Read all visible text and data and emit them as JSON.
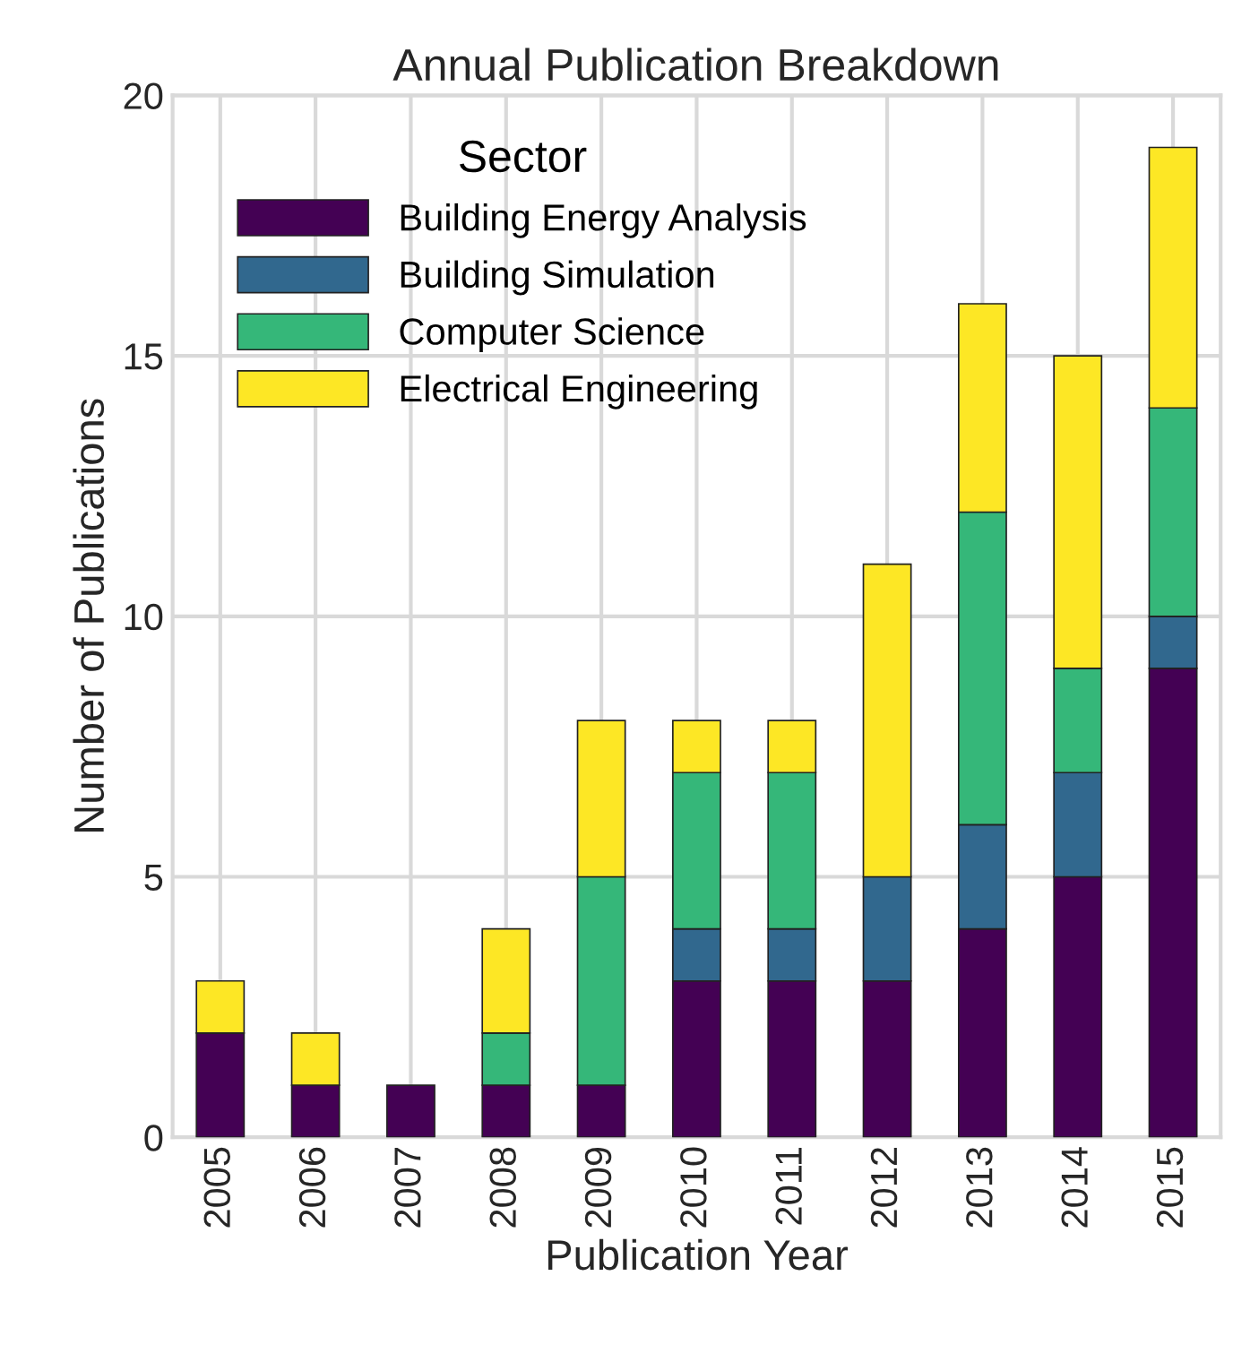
{
  "chart_data": {
    "type": "bar",
    "title": "Annual Publication Breakdown",
    "xlabel": "Publication Year",
    "ylabel": "Number of Publications",
    "legend_title": "Sector",
    "categories": [
      "2005",
      "2006",
      "2007",
      "2008",
      "2009",
      "2010",
      "2011",
      "2012",
      "2013",
      "2014",
      "2015"
    ],
    "series": [
      {
        "name": "Building Energy Analysis",
        "color": "#440154",
        "values": [
          2,
          1,
          1,
          1,
          1,
          3,
          3,
          3,
          4,
          5,
          9
        ]
      },
      {
        "name": "Building Simulation",
        "color": "#31688e",
        "values": [
          0,
          0,
          0,
          0,
          0,
          1,
          1,
          2,
          2,
          2,
          1
        ]
      },
      {
        "name": "Computer Science",
        "color": "#35b779",
        "values": [
          0,
          0,
          0,
          1,
          4,
          3,
          3,
          0,
          6,
          2,
          4
        ]
      },
      {
        "name": "Electrical Engineering",
        "color": "#fde725",
        "values": [
          1,
          1,
          0,
          2,
          3,
          1,
          1,
          6,
          4,
          6,
          5
        ]
      }
    ],
    "stacked": true,
    "ylim": [
      0,
      20
    ],
    "yticks": [
      0,
      5,
      10,
      15,
      20
    ],
    "grid": true,
    "legend": "top left"
  }
}
